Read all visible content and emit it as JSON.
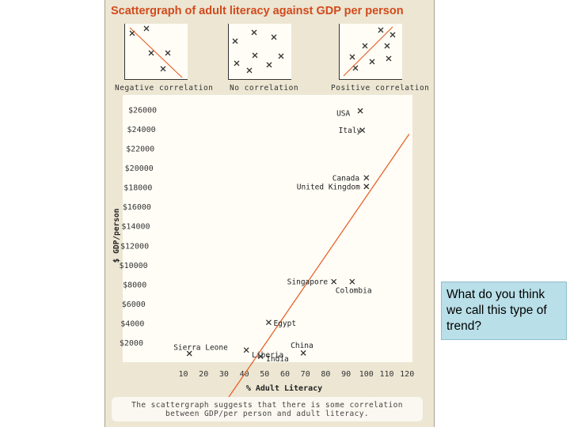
{
  "title": "Scattergraph of adult literacy against GDP per person",
  "examples": [
    {
      "label": "Negative correlation"
    },
    {
      "label": "No correlation"
    },
    {
      "label": "Positive correlation"
    }
  ],
  "footnote": {
    "line1": "The scattergraph suggests that there is some correlation",
    "line2": "between GDP/per person and adult literacy."
  },
  "question": "What do you think we call this type of trend?",
  "colors": {
    "trend": "#e8622a",
    "title": "#d24a1c",
    "panel": "#ece6d3",
    "question_box": "#b9dfe8"
  },
  "chart_data": {
    "type": "scatter",
    "title": "",
    "xlabel": "% Adult Literacy",
    "ylabel": "$ GDP/person",
    "x_ticks": [
      10,
      20,
      30,
      40,
      50,
      60,
      70,
      80,
      90,
      100,
      110,
      120
    ],
    "y_ticks": [
      2000,
      4000,
      6000,
      8000,
      10000,
      12000,
      14000,
      16000,
      18000,
      20000,
      22000,
      24000,
      26000
    ],
    "y_tick_labels": [
      "$2000",
      "$4000",
      "$6000",
      "$8000",
      "$10000",
      "$12000",
      "$14000",
      "$16000",
      "$18000",
      "$20000",
      "$22000",
      "$24000",
      "$26000"
    ],
    "xlim": [
      5,
      123
    ],
    "ylim": [
      0,
      27000
    ],
    "points": [
      {
        "label": "USA",
        "x": 97,
        "y": 25900
      },
      {
        "label": "Italy",
        "x": 98,
        "y": 23900
      },
      {
        "label": "Canada",
        "x": 100,
        "y": 19000
      },
      {
        "label": "United Kingdom",
        "x": 100,
        "y": 18100
      },
      {
        "label": "Singapore",
        "x": 84,
        "y": 8300
      },
      {
        "label": "Colombia",
        "x": 93,
        "y": 8300
      },
      {
        "label": "Egypt",
        "x": 52,
        "y": 4100
      },
      {
        "label": "Sierra Leone",
        "x": 13,
        "y": 900
      },
      {
        "label": "Liberia",
        "x": 41,
        "y": 1250
      },
      {
        "label": "India",
        "x": 48,
        "y": 600
      },
      {
        "label": "China",
        "x": 69,
        "y": 950
      }
    ],
    "trend_line": [
      {
        "x": 32,
        "y": -3700
      },
      {
        "x": 121,
        "y": 23500
      }
    ]
  }
}
